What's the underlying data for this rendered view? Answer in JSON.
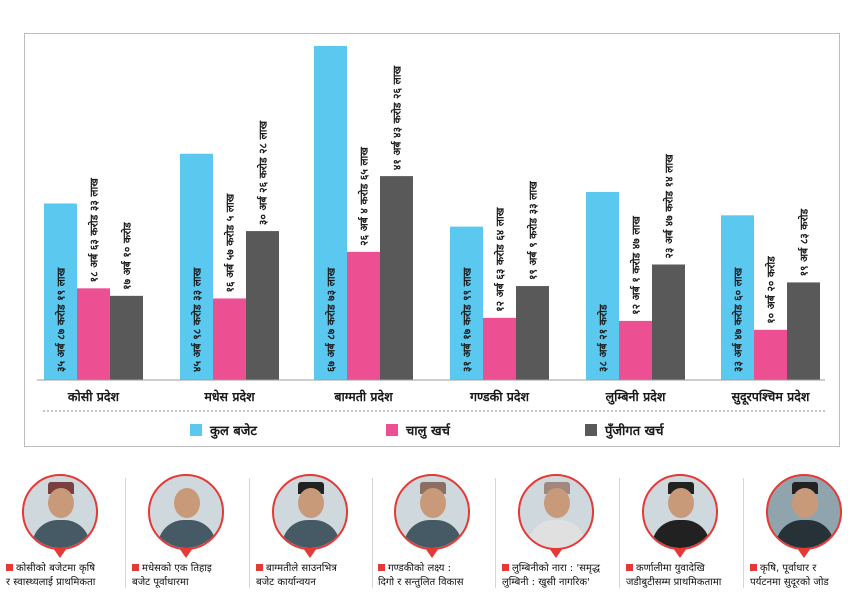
{
  "chart_data": {
    "type": "bar",
    "categories": [
      "कोसी प्रदेश",
      "मधेस प्रदेश",
      "बाग्मती प्रदेश",
      "गण्डकी प्रदेश",
      "लुम्बिनी प्रदेश",
      "सुदूरपश्चिम प्रदेश"
    ],
    "series": [
      {
        "name": "कुल बजेट",
        "color": "#5bc8ef",
        "values": [
          35.87,
          45.98,
          67.87,
          31.17,
          38.21,
          33.47
        ],
        "labels": [
          "३५ अर्ब ८७ करोड १९ लाख",
          "४५ अर्ब ९८ करोड ३३ लाख",
          "६७ अर्ब ८७ करोड ७३ लाख",
          "३१ अर्ब १७ करोड ९९ लाख",
          "३८ अर्ब २१ करोड",
          "३३ अर्ब ४७ करोड ६० लाख"
        ]
      },
      {
        "name": "चालु खर्च",
        "color": "#ec4f92",
        "values": [
          18.63,
          16.57,
          26.04,
          12.63,
          12.01,
          10.2
        ],
        "labels": [
          "१८ अर्ब ६३ करोड ३३ लाख",
          "१६ अर्ब ५७ करोड ५ लाख",
          "२६ अर्ब ४ करोड ६५ लाख",
          "१२ अर्ब ६३ करोड ६४ लाख",
          "१२ अर्ब १ करोड ४७ लाख",
          "१० अर्ब २० करोड"
        ]
      },
      {
        "name": "पुँजीगत खर्च",
        "color": "#595959",
        "values": [
          17.1,
          30.26,
          41.43,
          19.09,
          23.47,
          19.83
        ],
        "labels": [
          "१७ अर्ब १० करोड",
          "३० अर्ब २६ करोड २८ लाख",
          "४१ अर्ब ४३ करोड २६ लाख",
          "१९ अर्ब ९ करोड ३३ लाख",
          "२३ अर्ब ४७ करोड १४ लाख",
          "१९ अर्ब ८३ करोड"
        ]
      }
    ],
    "ylim": [
      0,
      67.87
    ],
    "grid": false,
    "legend": "bottom"
  },
  "people": [
    {
      "caption1": "कोसीको बजेटमा कृषि",
      "caption2": "र स्वास्थ्यलाई प्राथमिकता"
    },
    {
      "caption1": "मधेसको एक तिहाइ",
      "caption2": "बजेट पूर्वाधारमा"
    },
    {
      "caption1": "बाग्मतीले साउनभित्र",
      "caption2": "बजेट कार्यान्वयन"
    },
    {
      "caption1": "गण्डकीको लक्ष्य :",
      "caption2": "दिगो र सन्तुलित विकास"
    },
    {
      "caption1": "लुम्बिनीको नारा : 'समृद्ध",
      "caption2": "लुम्बिनी : खुसी नागरिक'"
    },
    {
      "caption1": "कर्णालीमा युवादेखि",
      "caption2": "जडीबुटीसम्म प्राथमिकतामा"
    },
    {
      "caption1": "कृषि, पूर्वाधार र",
      "caption2": "पर्यटनमा सुदूरको जोड"
    }
  ]
}
